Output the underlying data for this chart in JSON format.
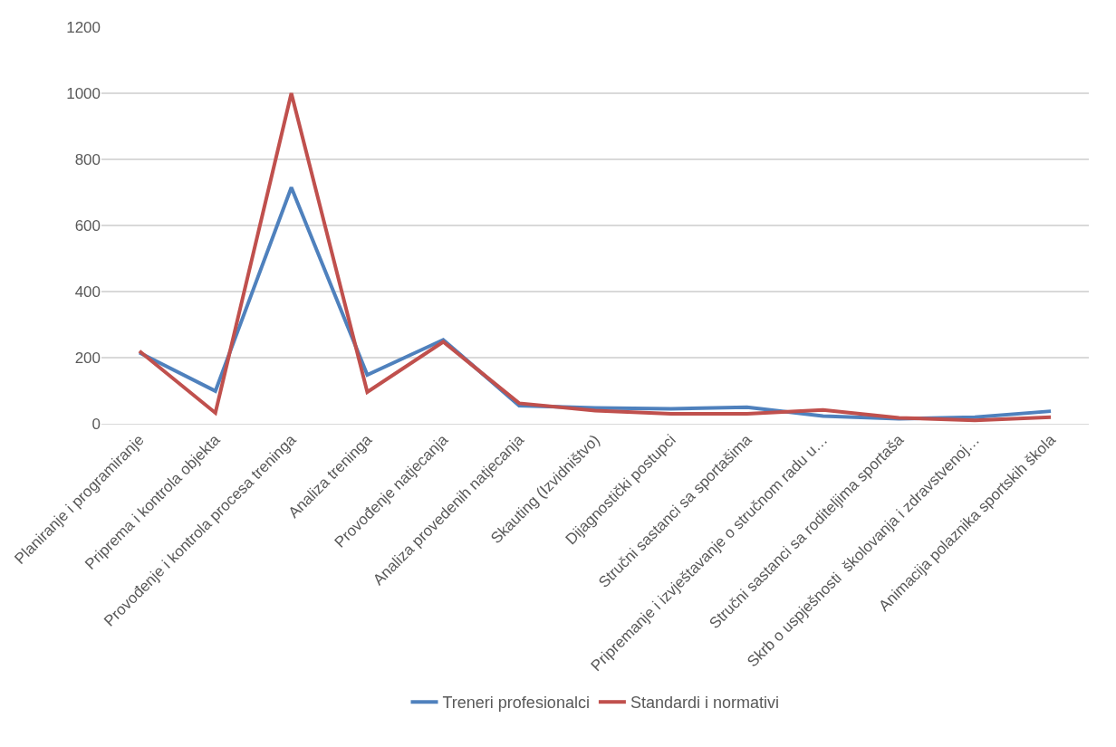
{
  "chart_data": {
    "type": "line",
    "categories": [
      "Planiranje i programiranje",
      "Priprema i kontrola objekta",
      "Provođenje i kontrola procesa treninga",
      "Analiza treninga",
      "Provođenje natjecanja",
      "Analiza provedenih natjecanja",
      "Skauting (Izvidništvo)",
      "Dijagnostički postupci",
      "Stručni sastanci sa sportašima",
      "Pripremanje i izvještavanje o stručnom radu u…",
      "Stručni sastanci sa roditeljima sportaša",
      "Skrb o uspješnosti  školovanja i zdravstvenoj…",
      "Animacija polaznika sportskih škola"
    ],
    "series": [
      {
        "name": "Treneri profesionalci",
        "color": "#4f81bd",
        "values": [
          215,
          99,
          715,
          148,
          254,
          55,
          48,
          45,
          50,
          23,
          15,
          20,
          38
        ]
      },
      {
        "name": "Standardi i normativi",
        "color": "#c0504d",
        "values": [
          220,
          33,
          1000,
          96,
          248,
          62,
          40,
          30,
          30,
          42,
          18,
          10,
          20
        ]
      }
    ],
    "ylim": [
      0,
      1200
    ],
    "yticks": [
      0,
      200,
      400,
      600,
      800,
      1000,
      1200
    ],
    "grid": "y",
    "legend": "bottom",
    "marker": "none",
    "line_style": "solid"
  }
}
